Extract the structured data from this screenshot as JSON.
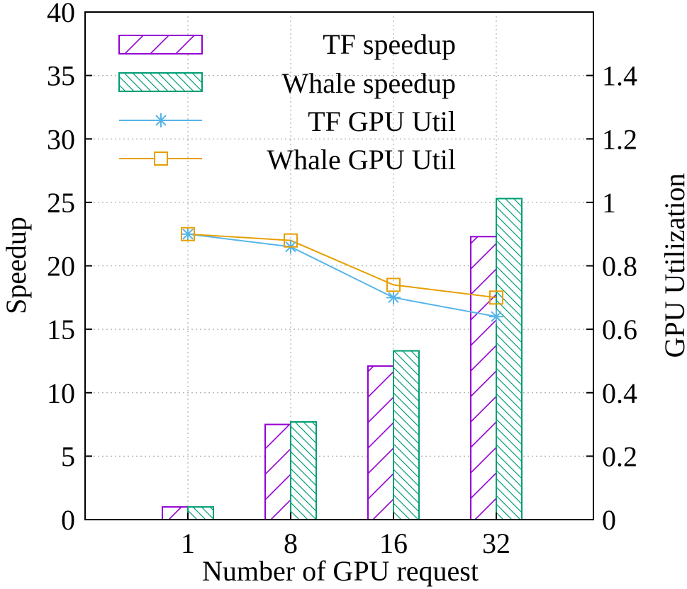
{
  "chart_data": {
    "type": "bar",
    "title": "",
    "xlabel": "Number of GPU request",
    "ylabel": "Speedup",
    "y2label": "GPU Utilization",
    "categories": [
      "1",
      "8",
      "16",
      "32"
    ],
    "ylim": [
      0,
      40
    ],
    "y2lim": [
      0,
      1.6
    ],
    "yticks": [
      "0",
      "5",
      "10",
      "15",
      "20",
      "25",
      "30",
      "35",
      "40"
    ],
    "y2ticks": [
      "0",
      "0.2",
      "0.4",
      "0.6",
      "0.8",
      "1",
      "1.2",
      "1.4"
    ],
    "grid": true,
    "legend_position": "top-left",
    "bar_series": [
      {
        "name": "TF speedup",
        "values": [
          1,
          7.5,
          12.1,
          22.3
        ],
        "color": "#9400d3",
        "pattern": "forward-hatch"
      },
      {
        "name": "Whale speedup",
        "values": [
          1,
          7.7,
          13.3,
          25.3
        ],
        "color": "#009e73",
        "pattern": "back-hatch"
      }
    ],
    "line_series": [
      {
        "name": "TF GPU Util",
        "values": [
          0.9,
          0.86,
          0.7,
          0.64
        ],
        "color": "#56b4e9",
        "marker": "asterisk",
        "axis": "y2"
      },
      {
        "name": "Whale GPU Util",
        "values": [
          0.9,
          0.88,
          0.74,
          0.7
        ],
        "color": "#e69f00",
        "marker": "square",
        "axis": "y2"
      }
    ]
  }
}
